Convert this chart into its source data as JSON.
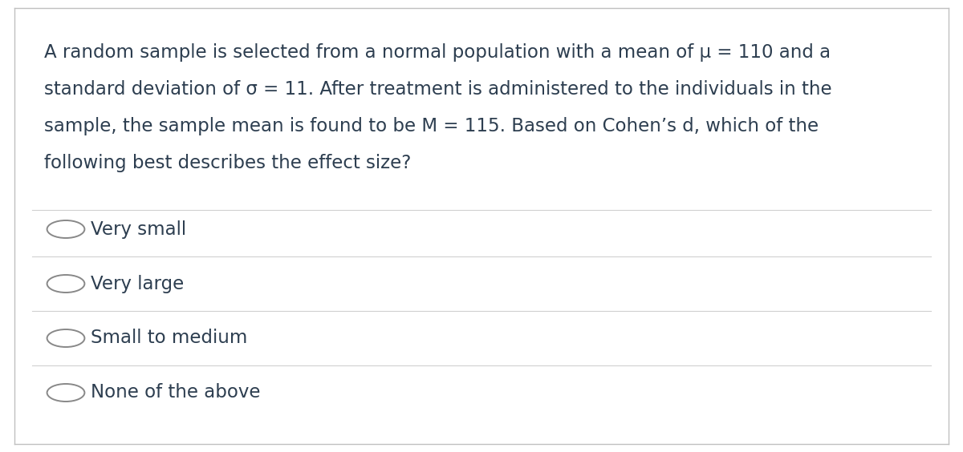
{
  "bg_color": "#ffffff",
  "card_color": "#ffffff",
  "text_color": "#2d3e50",
  "divider_color": "#d0d0d0",
  "border_color": "#c0c0c0",
  "question_lines": [
    "A random sample is selected from a normal population with a mean of μ = 110 and a",
    "standard deviation of σ = 11. After treatment is administered to the individuals in the",
    "sample, the sample mean is found to be M = 115. Based on Cohen’s d, which of the",
    "following best describes the effect size?"
  ],
  "options": [
    "Very small",
    "Very large",
    "Small to medium",
    "None of the above"
  ],
  "question_fontsize": 16.5,
  "option_fontsize": 16.5,
  "circle_color": "#888888"
}
